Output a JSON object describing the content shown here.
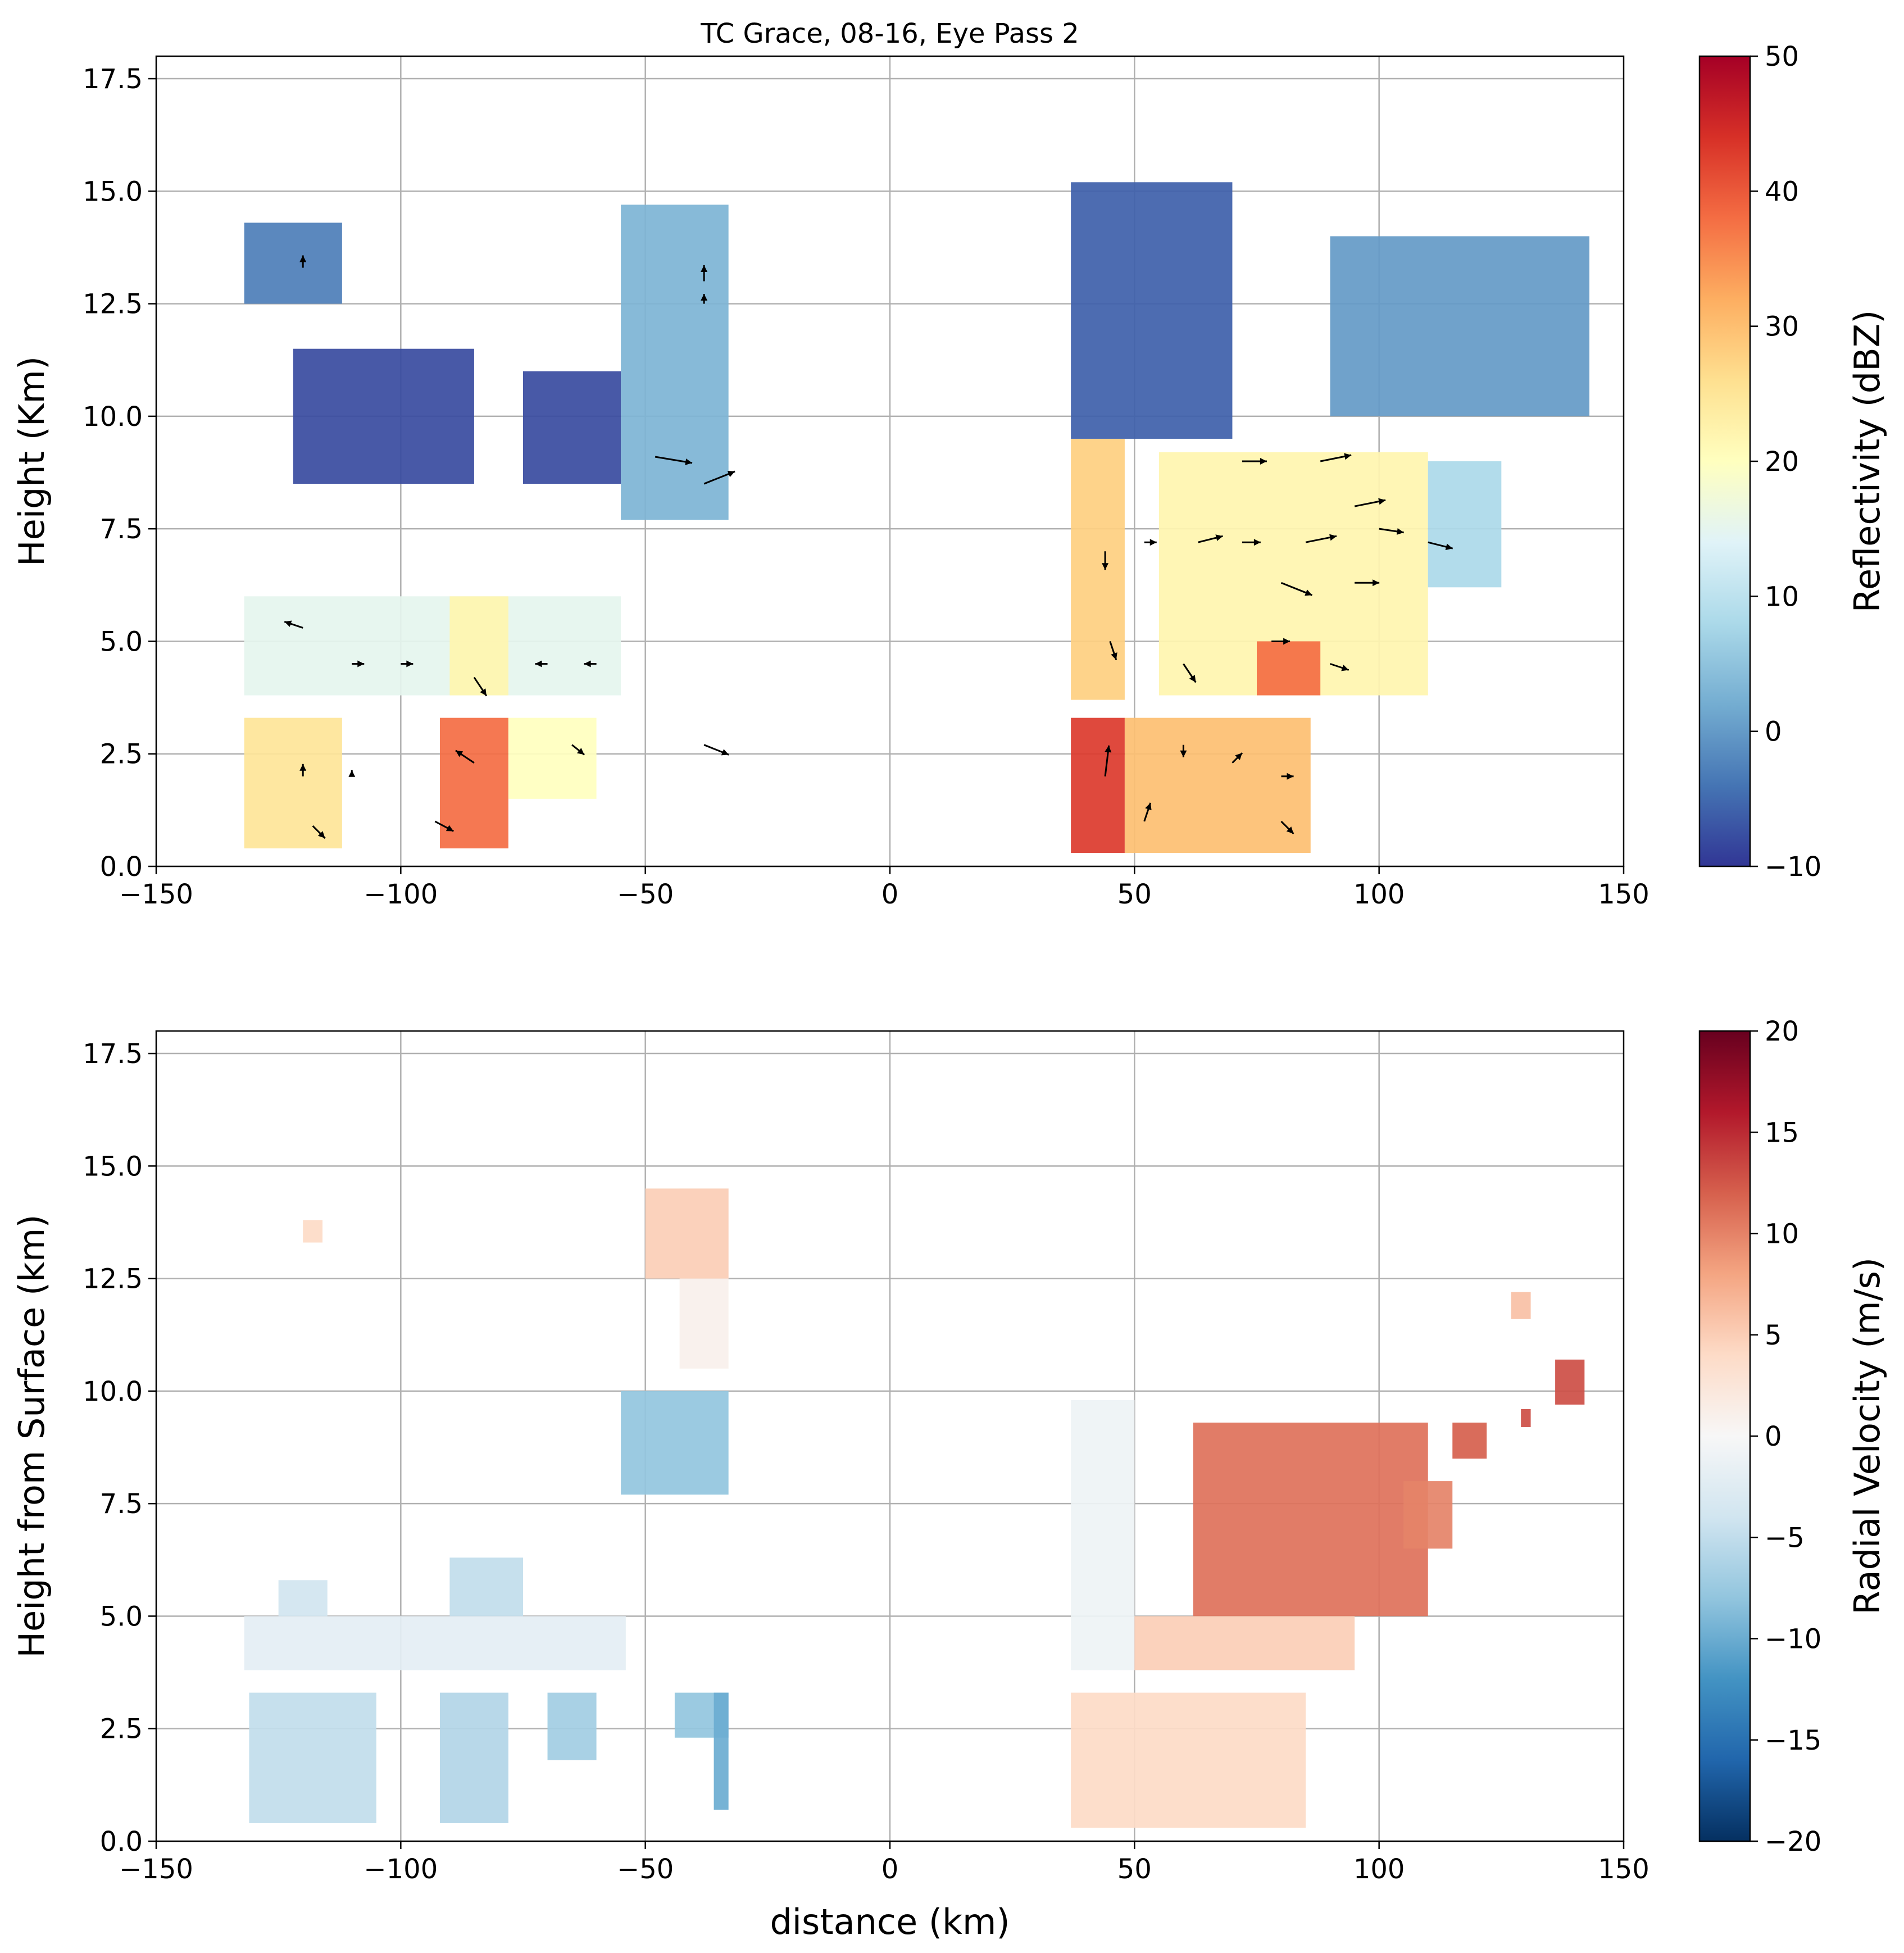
{
  "chart_data": [
    {
      "type": "heatmap",
      "title": "TC Grace, 08-16, Eye Pass 2",
      "xlabel": "",
      "ylabel": "Height (Km)",
      "xlim": [
        -150,
        150
      ],
      "ylim": [
        0,
        18
      ],
      "xticks": [
        -150,
        -100,
        -50,
        0,
        50,
        100,
        150
      ],
      "xtick_labels": [
        "−150",
        "−100",
        "−50",
        "0",
        "50",
        "100",
        "150"
      ],
      "yticks": [
        0.0,
        2.5,
        5.0,
        7.5,
        10.0,
        12.5,
        15.0,
        17.5
      ],
      "ytick_labels": [
        "0.0",
        "2.5",
        "5.0",
        "7.5",
        "10.0",
        "12.5",
        "15.0",
        "17.5"
      ],
      "grid": true,
      "colorbar": {
        "label": "Reflectivity (dBZ)",
        "range": [
          -10,
          50
        ],
        "ticks": [
          -10,
          0,
          10,
          20,
          30,
          40,
          50
        ],
        "tick_labels": [
          "−10",
          "0",
          "10",
          "20",
          "30",
          "40",
          "50"
        ],
        "colormap": "RdYlBu_r"
      },
      "regions": [
        {
          "x": [
            -132,
            -112
          ],
          "y": [
            12.5,
            14.3
          ],
          "value": -3
        },
        {
          "x": [
            -122,
            -85
          ],
          "y": [
            8.5,
            11.5
          ],
          "value": -8
        },
        {
          "x": [
            -75,
            -55
          ],
          "y": [
            8.5,
            11.0
          ],
          "value": -8
        },
        {
          "x": [
            -55,
            -33
          ],
          "y": [
            7.7,
            14.7
          ],
          "value": 3
        },
        {
          "x": [
            -132,
            -55
          ],
          "y": [
            3.8,
            6.0
          ],
          "value": 15
        },
        {
          "x": [
            -90,
            -78
          ],
          "y": [
            3.8,
            6.0
          ],
          "value": 22
        },
        {
          "x": [
            -132,
            -112
          ],
          "y": [
            0.4,
            3.3
          ],
          "value": 25
        },
        {
          "x": [
            -92,
            -78
          ],
          "y": [
            0.4,
            3.3
          ],
          "value": 38
        },
        {
          "x": [
            -78,
            -60
          ],
          "y": [
            1.5,
            3.3
          ],
          "value": 20
        },
        {
          "x": [
            37,
            48
          ],
          "y": [
            3.7,
            9.5
          ],
          "value": 28
        },
        {
          "x": [
            37,
            48
          ],
          "y": [
            0.3,
            3.3
          ],
          "value": 43
        },
        {
          "x": [
            48,
            86
          ],
          "y": [
            0.3,
            3.3
          ],
          "value": 30
        },
        {
          "x": [
            37,
            70
          ],
          "y": [
            9.5,
            15.2
          ],
          "value": -6
        },
        {
          "x": [
            55,
            110
          ],
          "y": [
            3.8,
            9.2
          ],
          "value": 22
        },
        {
          "x": [
            75,
            88
          ],
          "y": [
            3.8,
            5.0
          ],
          "value": 38
        },
        {
          "x": [
            90,
            143
          ],
          "y": [
            10.0,
            14.0
          ],
          "value": 0
        },
        {
          "x": [
            110,
            125
          ],
          "y": [
            6.2,
            9.0
          ],
          "value": 8
        }
      ],
      "vectors": [
        {
          "x": -120,
          "y": 13.3,
          "u": 0,
          "v": 1
        },
        {
          "x": -38,
          "y": 13.0,
          "u": 0,
          "v": 1.3
        },
        {
          "x": -38,
          "y": 12.5,
          "u": 0,
          "v": 0.8
        },
        {
          "x": -48,
          "y": 9.1,
          "u": 3,
          "v": -0.5
        },
        {
          "x": -38,
          "y": 8.5,
          "u": 2.5,
          "v": 1.0
        },
        {
          "x": -120,
          "y": 5.3,
          "u": -1.5,
          "v": 0.5
        },
        {
          "x": -110,
          "y": 4.5,
          "u": 1,
          "v": 0
        },
        {
          "x": -100,
          "y": 4.5,
          "u": 1,
          "v": 0
        },
        {
          "x": -85,
          "y": 4.2,
          "u": 1,
          "v": -1.5
        },
        {
          "x": -70,
          "y": 4.5,
          "u": -1,
          "v": 0
        },
        {
          "x": -60,
          "y": 4.5,
          "u": -1,
          "v": 0
        },
        {
          "x": -120,
          "y": 2.0,
          "u": 0,
          "v": 1
        },
        {
          "x": -110,
          "y": 2.0,
          "u": 0,
          "v": 0.5
        },
        {
          "x": -85,
          "y": 2.3,
          "u": -1.5,
          "v": 1
        },
        {
          "x": -65,
          "y": 2.7,
          "u": 1,
          "v": -0.8
        },
        {
          "x": -38,
          "y": 2.7,
          "u": 2,
          "v": -0.8
        },
        {
          "x": -118,
          "y": 0.9,
          "u": 1,
          "v": -1
        },
        {
          "x": -93,
          "y": 1.0,
          "u": 1.5,
          "v": -0.8
        },
        {
          "x": 44,
          "y": 2.0,
          "u": 0.3,
          "v": 2.5
        },
        {
          "x": 52,
          "y": 1.0,
          "u": 0.5,
          "v": 1.5
        },
        {
          "x": 60,
          "y": 2.7,
          "u": 0,
          "v": -1
        },
        {
          "x": 70,
          "y": 2.3,
          "u": 0.8,
          "v": 0.8
        },
        {
          "x": 80,
          "y": 2.0,
          "u": 1,
          "v": 0
        },
        {
          "x": 80,
          "y": 1.0,
          "u": 1,
          "v": -1
        },
        {
          "x": 44,
          "y": 7.0,
          "u": 0,
          "v": -1.5
        },
        {
          "x": 52,
          "y": 7.2,
          "u": 1,
          "v": 0
        },
        {
          "x": 63,
          "y": 7.2,
          "u": 2,
          "v": 0.5
        },
        {
          "x": 72,
          "y": 7.2,
          "u": 1.5,
          "v": 0
        },
        {
          "x": 85,
          "y": 7.2,
          "u": 2.5,
          "v": 0.5
        },
        {
          "x": 100,
          "y": 7.5,
          "u": 2,
          "v": -0.3
        },
        {
          "x": 110,
          "y": 7.2,
          "u": 2,
          "v": -0.5
        },
        {
          "x": 80,
          "y": 6.3,
          "u": 2.5,
          "v": -1.0
        },
        {
          "x": 95,
          "y": 6.3,
          "u": 2,
          "v": 0
        },
        {
          "x": 72,
          "y": 9.0,
          "u": 2,
          "v": 0
        },
        {
          "x": 88,
          "y": 9.0,
          "u": 2.5,
          "v": 0.5
        },
        {
          "x": 95,
          "y": 8.0,
          "u": 2.5,
          "v": 0.5
        },
        {
          "x": 45,
          "y": 5.0,
          "u": 0.5,
          "v": -1.5
        },
        {
          "x": 60,
          "y": 4.5,
          "u": 1,
          "v": -1.5
        },
        {
          "x": 78,
          "y": 5.0,
          "u": 1.5,
          "v": 0
        },
        {
          "x": 90,
          "y": 4.5,
          "u": 1.5,
          "v": -0.5
        }
      ]
    },
    {
      "type": "heatmap",
      "xlabel": "distance (km)",
      "ylabel": "Height from Surface (km)",
      "xlim": [
        -150,
        150
      ],
      "ylim": [
        0,
        18
      ],
      "xticks": [
        -150,
        -100,
        -50,
        0,
        50,
        100,
        150
      ],
      "xtick_labels": [
        "−150",
        "−100",
        "−50",
        "0",
        "50",
        "100",
        "150"
      ],
      "yticks": [
        0.0,
        2.5,
        5.0,
        7.5,
        10.0,
        12.5,
        15.0,
        17.5
      ],
      "ytick_labels": [
        "0.0",
        "2.5",
        "5.0",
        "7.5",
        "10.0",
        "12.5",
        "15.0",
        "17.5"
      ],
      "grid": true,
      "colorbar": {
        "label": "Radial Velocity (m/s)",
        "range": [
          -20,
          20
        ],
        "ticks": [
          -20,
          -15,
          -10,
          -5,
          0,
          5,
          10,
          15,
          20
        ],
        "tick_labels": [
          "−20",
          "−15",
          "−10",
          "−5",
          "0",
          "5",
          "10",
          "15",
          "20"
        ],
        "colormap": "RdBu_r"
      },
      "regions": [
        {
          "x": [
            -120,
            -116
          ],
          "y": [
            13.3,
            13.8
          ],
          "value": 4
        },
        {
          "x": [
            -43,
            -33
          ],
          "y": [
            10.5,
            14.5
          ],
          "value": 1
        },
        {
          "x": [
            -50,
            -33
          ],
          "y": [
            12.5,
            14.5
          ],
          "value": 5
        },
        {
          "x": [
            -55,
            -33
          ],
          "y": [
            7.7,
            10.0
          ],
          "value": -8
        },
        {
          "x": [
            -132,
            -54
          ],
          "y": [
            3.8,
            5.0
          ],
          "value": -2
        },
        {
          "x": [
            -90,
            -75
          ],
          "y": [
            5.0,
            6.3
          ],
          "value": -5
        },
        {
          "x": [
            -125,
            -115
          ],
          "y": [
            5.0,
            5.8
          ],
          "value": -4
        },
        {
          "x": [
            -131,
            -105
          ],
          "y": [
            0.4,
            3.3
          ],
          "value": -5
        },
        {
          "x": [
            -92,
            -78
          ],
          "y": [
            0.4,
            3.3
          ],
          "value": -6
        },
        {
          "x": [
            -70,
            -60
          ],
          "y": [
            1.8,
            3.3
          ],
          "value": -7
        },
        {
          "x": [
            -44,
            -33
          ],
          "y": [
            2.3,
            3.3
          ],
          "value": -8
        },
        {
          "x": [
            -36,
            -33
          ],
          "y": [
            0.7,
            3.3
          ],
          "value": -10
        },
        {
          "x": [
            37,
            50
          ],
          "y": [
            3.8,
            9.8
          ],
          "value": -1
        },
        {
          "x": [
            37,
            85
          ],
          "y": [
            0.3,
            3.3
          ],
          "value": 4
        },
        {
          "x": [
            50,
            95
          ],
          "y": [
            3.8,
            5.0
          ],
          "value": 5
        },
        {
          "x": [
            62,
            110
          ],
          "y": [
            5.0,
            9.3
          ],
          "value": 11
        },
        {
          "x": [
            105,
            115
          ],
          "y": [
            6.5,
            8.0
          ],
          "value": 10
        },
        {
          "x": [
            115,
            122
          ],
          "y": [
            8.5,
            9.3
          ],
          "value": 12
        },
        {
          "x": [
            127,
            131
          ],
          "y": [
            11.6,
            12.2
          ],
          "value": 6
        },
        {
          "x": [
            136,
            142
          ],
          "y": [
            9.7,
            10.7
          ],
          "value": 13
        },
        {
          "x": [
            129,
            131
          ],
          "y": [
            9.2,
            9.6
          ],
          "value": 13
        }
      ]
    }
  ]
}
